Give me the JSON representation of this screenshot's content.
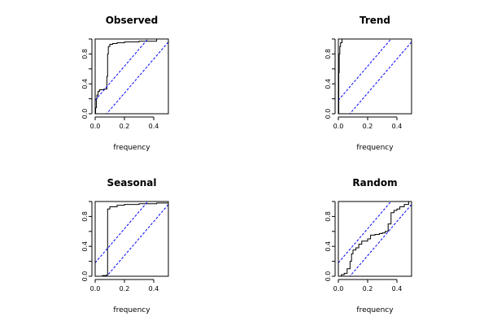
{
  "chart_data": [
    {
      "type": "line",
      "title": "Observed",
      "xlabel": "frequency",
      "ylabel": "",
      "xlim": [
        0,
        0.5
      ],
      "ylim": [
        0,
        1
      ],
      "xticks": [
        "0.0",
        "0.2",
        "0.4"
      ],
      "yticks": [
        "0.0",
        "0.4",
        "0.8"
      ],
      "series": [
        {
          "style": "step",
          "color": "#000000",
          "x": [
            0,
            0.003,
            0.008,
            0.012,
            0.02,
            0.03,
            0.06,
            0.08,
            0.085,
            0.09,
            0.1,
            0.12,
            0.15,
            0.2,
            0.3,
            0.4,
            0.42,
            0.5
          ],
          "y": [
            0,
            0.08,
            0.2,
            0.25,
            0.3,
            0.32,
            0.33,
            0.5,
            0.8,
            0.9,
            0.93,
            0.94,
            0.95,
            0.96,
            0.97,
            0.97,
            1.0,
            1.0
          ]
        },
        {
          "style": "dashed",
          "color": "#0000ff",
          "x": [
            0,
            0.5
          ],
          "y": [
            0.18,
            1.32
          ]
        },
        {
          "style": "dashed",
          "color": "#0000ff",
          "x": [
            0,
            0.5
          ],
          "y": [
            -0.18,
            0.96
          ]
        }
      ]
    },
    {
      "type": "line",
      "title": "Trend",
      "xlabel": "frequency",
      "ylabel": "",
      "xlim": [
        0,
        0.5
      ],
      "ylim": [
        0,
        1
      ],
      "xticks": [
        "0.0",
        "0.2",
        "0.4"
      ],
      "yticks": [
        "0.0",
        "0.4",
        "0.8"
      ],
      "series": [
        {
          "style": "step",
          "color": "#000000",
          "x": [
            0,
            0.003,
            0.006,
            0.01,
            0.015,
            0.025,
            0.5
          ],
          "y": [
            0,
            0.55,
            0.8,
            0.9,
            0.95,
            1.0,
            1.0
          ]
        },
        {
          "style": "dashed",
          "color": "#0000ff",
          "x": [
            0,
            0.5
          ],
          "y": [
            0.18,
            1.32
          ]
        },
        {
          "style": "dashed",
          "color": "#0000ff",
          "x": [
            0,
            0.5
          ],
          "y": [
            -0.18,
            0.96
          ]
        }
      ]
    },
    {
      "type": "line",
      "title": "Seasonal",
      "xlabel": "frequency",
      "ylabel": "",
      "xlim": [
        0,
        0.5
      ],
      "ylim": [
        0,
        1
      ],
      "xticks": [
        "0.0",
        "0.2",
        "0.4"
      ],
      "yticks": [
        "0.0",
        "0.4",
        "0.8"
      ],
      "series": [
        {
          "style": "step",
          "color": "#000000",
          "x": [
            0,
            0.05,
            0.08,
            0.085,
            0.1,
            0.15,
            0.2,
            0.3,
            0.42,
            0.5
          ],
          "y": [
            0,
            0.01,
            0.02,
            0.9,
            0.93,
            0.95,
            0.96,
            0.97,
            0.98,
            0.98
          ]
        },
        {
          "style": "dashed",
          "color": "#0000ff",
          "x": [
            0,
            0.5
          ],
          "y": [
            0.18,
            1.32
          ]
        },
        {
          "style": "dashed",
          "color": "#0000ff",
          "x": [
            0,
            0.5
          ],
          "y": [
            -0.18,
            0.96
          ]
        }
      ]
    },
    {
      "type": "line",
      "title": "Random",
      "xlabel": "frequency",
      "ylabel": "",
      "xlim": [
        0,
        0.5
      ],
      "ylim": [
        0,
        1
      ],
      "xticks": [
        "0.0",
        "0.2",
        "0.4"
      ],
      "yticks": [
        "0.0",
        "0.4",
        "0.8"
      ],
      "series": [
        {
          "style": "step",
          "color": "#000000",
          "x": [
            0,
            0.02,
            0.04,
            0.06,
            0.08,
            0.09,
            0.1,
            0.12,
            0.14,
            0.16,
            0.2,
            0.22,
            0.25,
            0.28,
            0.3,
            0.32,
            0.34,
            0.36,
            0.38,
            0.4,
            0.42,
            0.45,
            0.48,
            0.5
          ],
          "y": [
            0,
            0.02,
            0.04,
            0.1,
            0.2,
            0.3,
            0.35,
            0.38,
            0.43,
            0.47,
            0.5,
            0.55,
            0.56,
            0.57,
            0.58,
            0.6,
            0.7,
            0.85,
            0.88,
            0.9,
            0.93,
            0.96,
            1.0,
            1.0
          ]
        },
        {
          "style": "dashed",
          "color": "#0000ff",
          "x": [
            0,
            0.5
          ],
          "y": [
            0.18,
            1.32
          ]
        },
        {
          "style": "dashed",
          "color": "#0000ff",
          "x": [
            0,
            0.5
          ],
          "y": [
            -0.18,
            0.96
          ]
        }
      ]
    }
  ]
}
